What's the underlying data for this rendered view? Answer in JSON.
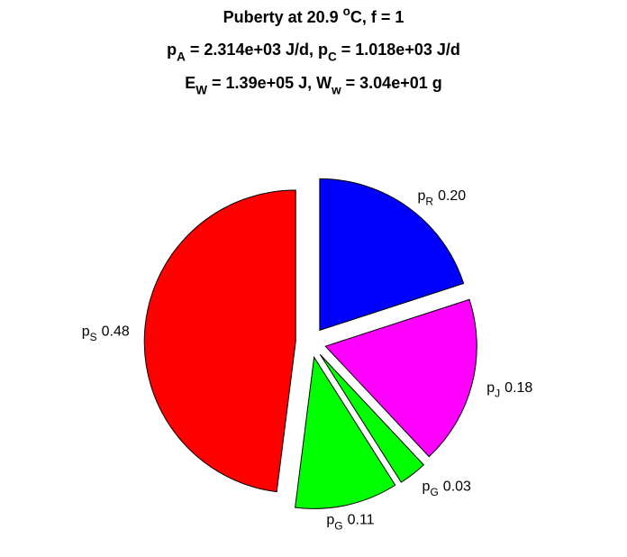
{
  "chart_data": {
    "type": "pie",
    "title_lines": [
      [
        {
          "text": "Puberty at 20.9 "
        },
        {
          "text": "o",
          "script": "sup"
        },
        {
          "text": "C, f = 1"
        }
      ],
      [
        {
          "text": "p"
        },
        {
          "text": "A",
          "script": "sub"
        },
        {
          "text": " = 2.314e+03 J/d,  p"
        },
        {
          "text": "C",
          "script": "sub"
        },
        {
          "text": " = 1.018e+03 J/d"
        }
      ],
      [
        {
          "text": "E"
        },
        {
          "text": "W",
          "script": "sub"
        },
        {
          "text": " = 1.39e+05 J, W"
        },
        {
          "text": "w",
          "script": "sub"
        },
        {
          "text": " = 3.04e+01 g"
        }
      ]
    ],
    "categories": [
      [
        {
          "text": "p"
        },
        {
          "text": "R",
          "script": "sub"
        }
      ],
      [
        {
          "text": "p"
        },
        {
          "text": "J",
          "script": "sub"
        }
      ],
      [
        {
          "text": "p"
        },
        {
          "text": "G",
          "script": "sub"
        }
      ],
      [
        {
          "text": "p"
        },
        {
          "text": "G",
          "script": "sub"
        }
      ],
      [
        {
          "text": "p"
        },
        {
          "text": "S",
          "script": "sub"
        }
      ]
    ],
    "values": [
      0.2,
      0.18,
      0.03,
      0.11,
      0.48
    ],
    "value_labels": [
      "0.20",
      "0.18",
      "0.03",
      "0.11",
      "0.48"
    ],
    "colors": [
      "#0000ff",
      "#ff00ff",
      "#00ff00",
      "#00ff00",
      "#ff0000"
    ],
    "explode": true
  }
}
